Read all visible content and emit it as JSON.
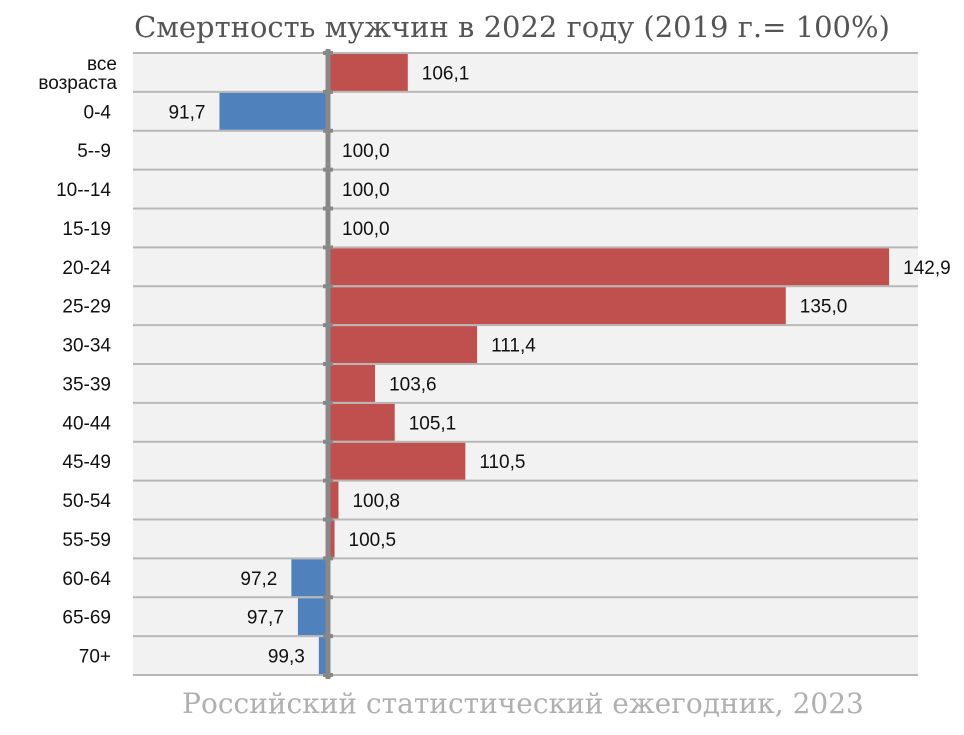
{
  "chart_data": {
    "type": "bar",
    "orientation": "horizontal",
    "title": "Смертность мужчин в 2022 году (2019 г.= 100%)",
    "source": "Российский статистический ежегодник, 2023",
    "baseline": 100,
    "categories": [
      "все возраста",
      "0-4",
      "5--9",
      "10--14",
      "15-19",
      "20-24",
      "25-29",
      "30-34",
      "35-39",
      "40-44",
      "45-49",
      "50-54",
      "55-59",
      "60-64",
      "65-69",
      "70+"
    ],
    "values": [
      106.1,
      91.7,
      100.0,
      100.0,
      100.0,
      142.9,
      135.0,
      111.4,
      103.6,
      105.1,
      110.5,
      100.8,
      100.5,
      97.2,
      97.7,
      99.3
    ],
    "labels": [
      "106,1",
      "91,7",
      "100,0",
      "100,0",
      "100,0",
      "142,9",
      "135,0",
      "111,4",
      "103,6",
      "105,1",
      "110,5",
      "100,8",
      "100,5",
      "97,2",
      "97,7",
      "99,3"
    ],
    "xlim": [
      85,
      145
    ],
    "grid": true,
    "colors": {
      "above": "#c0504d",
      "below": "#4f81bd",
      "axis": "#888888",
      "plot_bg": "#f2f2f2",
      "gridline": "#b8b8b8"
    }
  }
}
